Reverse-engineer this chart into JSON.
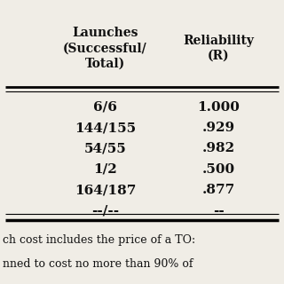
{
  "col_headers": [
    "Launches\n(Successful/\nTotal)",
    "Reliability\n(R)"
  ],
  "rows": [
    [
      "6/6",
      "1.000"
    ],
    [
      "144/155",
      ".929"
    ],
    [
      "54/55",
      ".982"
    ],
    [
      "1/2",
      ".500"
    ],
    [
      "164/187",
      ".877"
    ],
    [
      "--/--",
      "--"
    ]
  ],
  "footer_lines": [
    "ch cost includes the price of a TO:",
    "nned to cost no more than 90% of"
  ],
  "bg_color": "#f0ede6",
  "text_color": "#111111",
  "header_fontsize": 10.0,
  "cell_fontsize": 11.0,
  "footer_fontsize": 9.0
}
